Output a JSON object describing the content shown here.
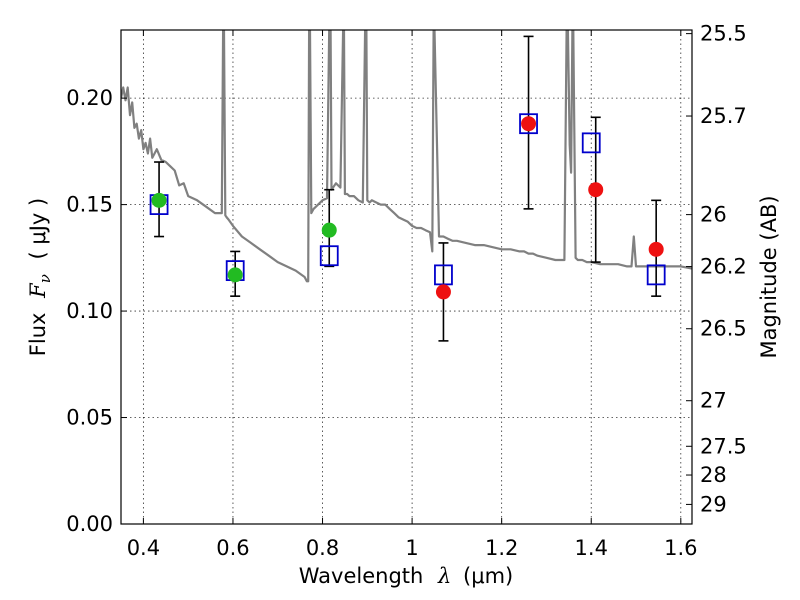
{
  "chart_data": {
    "type": "scatter",
    "title": "",
    "xlabel": "Wavelength",
    "xlabel_symbol": "λ",
    "xlabel_unit": "(μm)",
    "ylabel": "Flux",
    "ylabel_symbol": "F",
    "ylabel_sub": "ν",
    "ylabel_unit": "( μJy )",
    "y2label": "Magnitude (AB)",
    "xlim": [
      0.35,
      1.625
    ],
    "ylim": [
      0.0,
      0.232
    ],
    "grid": true,
    "x_ticks": [
      0.4,
      0.6,
      0.8,
      1.0,
      1.2,
      1.4,
      1.6
    ],
    "x_tick_labels": [
      "0.4",
      "0.6",
      "0.8",
      "1",
      "1.2",
      "1.4",
      "1.6"
    ],
    "y_ticks": [
      0.0,
      0.05,
      0.1,
      0.15,
      0.2
    ],
    "y_tick_labels": [
      "0.00",
      "0.05",
      "0.10",
      "0.15",
      "0.20"
    ],
    "y2_ticks": [
      {
        "label": "25.5",
        "flux": 0.2303
      },
      {
        "label": "25.7",
        "flux": 0.1916
      },
      {
        "label": "26",
        "flux": 0.1453
      },
      {
        "label": "26.2",
        "flux": 0.1209
      },
      {
        "label": "26.5",
        "flux": 0.0917
      },
      {
        "label": "27",
        "flux": 0.0579
      },
      {
        "label": "27.5",
        "flux": 0.0365
      },
      {
        "label": "28",
        "flux": 0.023
      },
      {
        "label": "29",
        "flux": 0.0092
      }
    ],
    "series": [
      {
        "name": "model spectrum",
        "kind": "line",
        "color": "#808080",
        "x": [
          0.35,
          0.355,
          0.36,
          0.365,
          0.37,
          0.375,
          0.38,
          0.385,
          0.39,
          0.395,
          0.4,
          0.405,
          0.41,
          0.415,
          0.42,
          0.43,
          0.44,
          0.45,
          0.46,
          0.47,
          0.48,
          0.49,
          0.5,
          0.52,
          0.54,
          0.56,
          0.575,
          0.578,
          0.58,
          0.583,
          0.586,
          0.59,
          0.6,
          0.62,
          0.64,
          0.66,
          0.68,
          0.7,
          0.72,
          0.74,
          0.76,
          0.765,
          0.768,
          0.77,
          0.772,
          0.775,
          0.78,
          0.79,
          0.8,
          0.81,
          0.815,
          0.818,
          0.82,
          0.83,
          0.84,
          0.846,
          0.848,
          0.85,
          0.855,
          0.86,
          0.87,
          0.88,
          0.89,
          0.895,
          0.898,
          0.9,
          0.905,
          0.91,
          0.92,
          0.93,
          0.94,
          0.95,
          0.96,
          0.97,
          0.98,
          0.99,
          1.0,
          1.01,
          1.02,
          1.03,
          1.04,
          1.045,
          1.048,
          1.05,
          1.06,
          1.07,
          1.08,
          1.09,
          1.1,
          1.12,
          1.14,
          1.16,
          1.18,
          1.2,
          1.22,
          1.24,
          1.25,
          1.26,
          1.27,
          1.28,
          1.3,
          1.32,
          1.34,
          1.345,
          1.348,
          1.352,
          1.355,
          1.358,
          1.36,
          1.365,
          1.37,
          1.38,
          1.39,
          1.4,
          1.42,
          1.44,
          1.46,
          1.48,
          1.49,
          1.495,
          1.5,
          1.52,
          1.54,
          1.56,
          1.58,
          1.6,
          1.625
        ],
        "y": [
          0.2,
          0.205,
          0.199,
          0.205,
          0.192,
          0.198,
          0.186,
          0.188,
          0.181,
          0.185,
          0.176,
          0.179,
          0.174,
          0.181,
          0.172,
          0.176,
          0.171,
          0.17,
          0.168,
          0.166,
          0.159,
          0.16,
          0.154,
          0.152,
          0.149,
          0.146,
          0.146,
          0.232,
          0.232,
          0.145,
          0.144,
          0.143,
          0.14,
          0.135,
          0.132,
          0.129,
          0.126,
          0.123,
          0.121,
          0.119,
          0.116,
          0.114,
          0.114,
          0.232,
          0.232,
          0.146,
          0.148,
          0.15,
          0.152,
          0.153,
          0.232,
          0.232,
          0.157,
          0.16,
          0.158,
          0.232,
          0.232,
          0.155,
          0.155,
          0.154,
          0.154,
          0.152,
          0.151,
          0.232,
          0.232,
          0.152,
          0.151,
          0.152,
          0.151,
          0.15,
          0.15,
          0.148,
          0.146,
          0.144,
          0.143,
          0.142,
          0.14,
          0.139,
          0.139,
          0.138,
          0.137,
          0.128,
          0.232,
          0.232,
          0.135,
          0.135,
          0.134,
          0.133,
          0.133,
          0.132,
          0.131,
          0.131,
          0.13,
          0.129,
          0.129,
          0.128,
          0.128,
          0.127,
          0.127,
          0.126,
          0.125,
          0.124,
          0.124,
          0.232,
          0.232,
          0.178,
          0.165,
          0.232,
          0.232,
          0.125,
          0.124,
          0.124,
          0.123,
          0.123,
          0.122,
          0.122,
          0.122,
          0.121,
          0.121,
          0.135,
          0.121,
          0.121,
          0.121,
          0.121,
          0.121,
          0.121,
          0.12
        ]
      },
      {
        "name": "green observed",
        "kind": "points",
        "marker": "circle",
        "color": "#22bb22",
        "x": [
          0.435,
          0.605,
          0.815
        ],
        "y": [
          0.152,
          0.117,
          0.138
        ],
        "yerr_low": [
          0.135,
          0.107,
          0.121
        ],
        "yerr_high": [
          0.17,
          0.128,
          0.157
        ]
      },
      {
        "name": "red observed",
        "kind": "points",
        "marker": "circle",
        "color": "#ee1111",
        "x": [
          1.07,
          1.26,
          1.41,
          1.545
        ],
        "y": [
          0.109,
          0.188,
          0.157,
          0.129
        ],
        "yerr_low": [
          0.086,
          0.148,
          0.123,
          0.107
        ],
        "yerr_high": [
          0.132,
          0.229,
          0.191,
          0.152
        ]
      },
      {
        "name": "model bandpass",
        "kind": "points",
        "marker": "open-square",
        "color": "#0000cc",
        "x": [
          0.435,
          0.605,
          0.815,
          1.07,
          1.26,
          1.4,
          1.545
        ],
        "y": [
          0.15,
          0.119,
          0.126,
          0.117,
          0.188,
          0.179,
          0.117
        ]
      }
    ]
  }
}
